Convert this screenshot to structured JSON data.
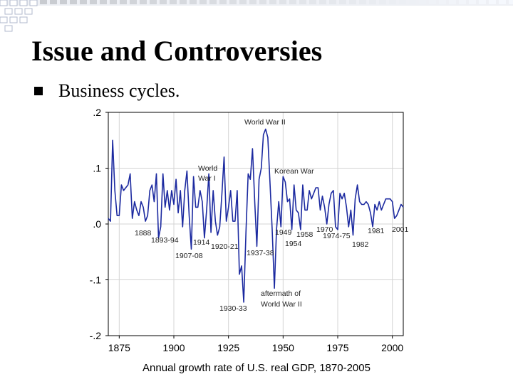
{
  "slide": {
    "title": "Issue and Controversies",
    "bullets": [
      {
        "text": "Business cycles.",
        "icon": "square-bullet-icon"
      }
    ]
  },
  "colors": {
    "line": "#1c2aa0",
    "grid": "#d4d4d4",
    "frame": "#000000",
    "text": "#000000",
    "label": "#222222",
    "decor": "#b0b8cc"
  },
  "chart_data": {
    "type": "line",
    "title": "Annual growth rate of U.S. real GDP, 1870-2005",
    "xlabel": "",
    "ylabel": "",
    "xlim": [
      1870,
      2005
    ],
    "ylim": [
      -0.2,
      0.2
    ],
    "grid": true,
    "x_ticks": [
      1875,
      1900,
      1925,
      1950,
      1975,
      2000
    ],
    "x_tick_labels": [
      "1875",
      "1900",
      "1925",
      "1950",
      "1975",
      "2000"
    ],
    "y_ticks": [
      0.2,
      0.1,
      0.0,
      -0.1,
      -0.2
    ],
    "y_tick_labels": [
      ".2",
      ".1",
      ".0",
      "-.1",
      "-.2"
    ],
    "series": [
      {
        "name": "Annual growth rate of U.S. real GDP",
        "x": [
          1870,
          1871,
          1872,
          1873,
          1874,
          1875,
          1876,
          1877,
          1878,
          1879,
          1880,
          1881,
          1882,
          1883,
          1884,
          1885,
          1886,
          1887,
          1888,
          1889,
          1890,
          1891,
          1892,
          1893,
          1894,
          1895,
          1896,
          1897,
          1898,
          1899,
          1900,
          1901,
          1902,
          1903,
          1904,
          1905,
          1906,
          1907,
          1908,
          1909,
          1910,
          1911,
          1912,
          1913,
          1914,
          1915,
          1916,
          1917,
          1918,
          1919,
          1920,
          1921,
          1922,
          1923,
          1924,
          1925,
          1926,
          1927,
          1928,
          1929,
          1930,
          1931,
          1932,
          1933,
          1934,
          1935,
          1936,
          1937,
          1938,
          1939,
          1940,
          1941,
          1942,
          1943,
          1944,
          1945,
          1946,
          1947,
          1948,
          1949,
          1950,
          1951,
          1952,
          1953,
          1954,
          1955,
          1956,
          1957,
          1958,
          1959,
          1960,
          1961,
          1962,
          1963,
          1964,
          1965,
          1966,
          1967,
          1968,
          1969,
          1970,
          1971,
          1972,
          1973,
          1974,
          1975,
          1976,
          1977,
          1978,
          1979,
          1980,
          1981,
          1982,
          1983,
          1984,
          1985,
          1986,
          1987,
          1988,
          1989,
          1990,
          1991,
          1992,
          1993,
          1994,
          1995,
          1996,
          1997,
          1998,
          1999,
          2000,
          2001,
          2002,
          2003,
          2004,
          2005
        ],
        "values": [
          0.01,
          0.005,
          0.15,
          0.06,
          0.015,
          0.015,
          0.07,
          0.06,
          0.065,
          0.07,
          0.09,
          0.01,
          0.04,
          0.025,
          0.015,
          0.04,
          0.03,
          0.005,
          0.015,
          0.06,
          0.07,
          0.04,
          0.09,
          -0.025,
          -0.005,
          0.09,
          0.03,
          0.06,
          0.025,
          0.06,
          0.035,
          0.08,
          0.02,
          0.06,
          -0.005,
          0.06,
          0.095,
          0.015,
          -0.045,
          0.085,
          0.03,
          0.03,
          0.06,
          0.04,
          -0.025,
          0.025,
          0.09,
          -0.015,
          0.06,
          0.005,
          -0.02,
          -0.005,
          0.055,
          0.12,
          0.005,
          0.03,
          0.06,
          0.005,
          0.005,
          0.06,
          -0.09,
          -0.075,
          -0.14,
          -0.015,
          0.09,
          0.08,
          0.135,
          0.04,
          -0.04,
          0.08,
          0.1,
          0.16,
          0.17,
          0.155,
          0.075,
          -0.01,
          -0.115,
          -0.01,
          0.04,
          -0.005,
          0.085,
          0.075,
          0.04,
          0.045,
          -0.01,
          0.07,
          0.025,
          0.02,
          -0.01,
          0.07,
          0.025,
          0.025,
          0.06,
          0.045,
          0.055,
          0.065,
          0.065,
          0.025,
          0.05,
          0.03,
          0.0,
          0.035,
          0.055,
          0.06,
          -0.005,
          -0.01,
          0.055,
          0.045,
          0.055,
          0.03,
          -0.005,
          0.025,
          -0.02,
          0.045,
          0.07,
          0.04,
          0.035,
          0.035,
          0.04,
          0.035,
          0.02,
          -0.005,
          0.035,
          0.025,
          0.04,
          0.025,
          0.035,
          0.045,
          0.045,
          0.045,
          0.04,
          0.01,
          0.015,
          0.025,
          0.035,
          0.03
        ]
      }
    ],
    "annotations": [
      {
        "text": "World War II",
        "x": 1943
      },
      {
        "text": "World",
        "x": 1916
      },
      {
        "text": "War I",
        "x": 1916
      },
      {
        "text": "Korean War",
        "x": 1951
      },
      {
        "text": "1888",
        "x": 1888
      },
      {
        "text": "1893-94",
        "x": 1893
      },
      {
        "text": "1914",
        "x": 1914
      },
      {
        "text": "1907-08",
        "x": 1907
      },
      {
        "text": "1920-21",
        "x": 1920
      },
      {
        "text": "1937-38",
        "x": 1937
      },
      {
        "text": "1949",
        "x": 1949
      },
      {
        "text": "1958",
        "x": 1958
      },
      {
        "text": "1954",
        "x": 1954
      },
      {
        "text": "1970",
        "x": 1970
      },
      {
        "text": "1974-75",
        "x": 1974
      },
      {
        "text": "1981",
        "x": 1981
      },
      {
        "text": "2001",
        "x": 2001
      },
      {
        "text": "1982",
        "x": 1982
      },
      {
        "text": "aftermath of",
        "x": 1946
      },
      {
        "text": "World War II",
        "x": 1946
      },
      {
        "text": "1930-33",
        "x": 1930
      }
    ]
  }
}
